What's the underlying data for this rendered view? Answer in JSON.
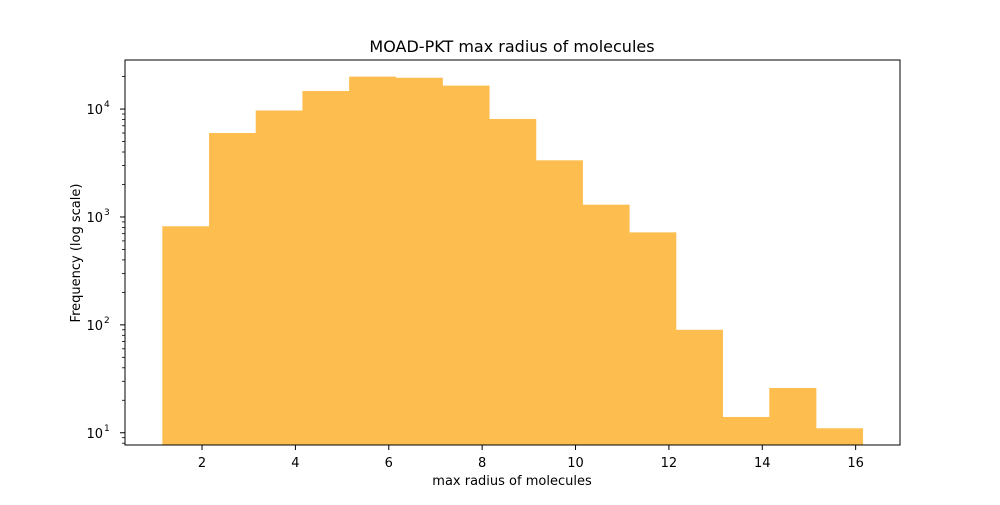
{
  "chart_data": {
    "type": "bar",
    "title": "MOAD-PKT max radius of molecules",
    "xlabel": "max radius of molecules",
    "ylabel": "Frequency (log scale)",
    "yscale": "log",
    "xlim": [
      0.35,
      16.95
    ],
    "ylim": [
      7.7,
      28500
    ],
    "bin_edges": [
      1.15,
      2.15,
      3.15,
      4.15,
      5.15,
      6.15,
      7.15,
      8.15,
      9.15,
      10.15,
      11.15,
      12.15,
      13.15,
      14.15,
      15.15,
      16.15
    ],
    "values": [
      820,
      6000,
      9700,
      14700,
      20000,
      19500,
      16500,
      8100,
      3350,
      1300,
      720,
      90,
      14,
      26,
      11
    ],
    "x_ticks": [
      2,
      4,
      6,
      8,
      10,
      12,
      14,
      16
    ],
    "y_ticks": [
      {
        "value": 10,
        "base": "10",
        "exp": "1"
      },
      {
        "value": 100,
        "base": "10",
        "exp": "2"
      },
      {
        "value": 1000,
        "base": "10",
        "exp": "3"
      },
      {
        "value": 10000,
        "base": "10",
        "exp": "4"
      }
    ],
    "grid": false,
    "bar_color": "#FDBE4F"
  }
}
